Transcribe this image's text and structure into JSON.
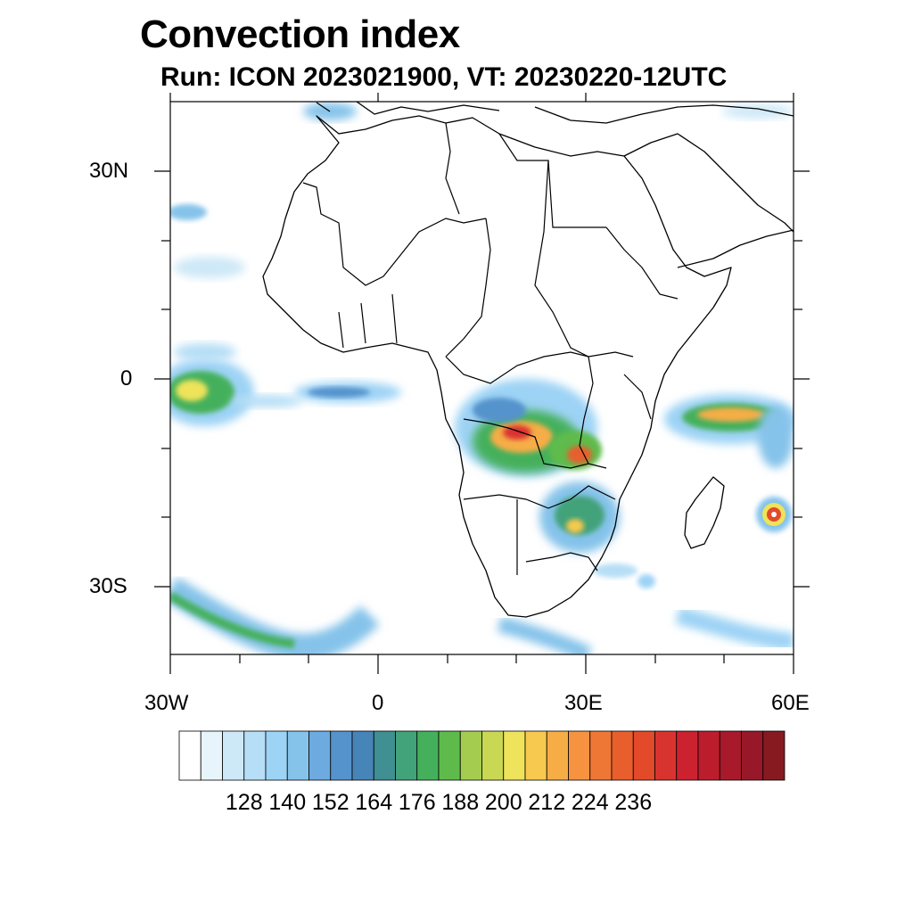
{
  "title": "Convection index",
  "subtitle": "Run: ICON 2023021900,  VT: 20230220-12UTC",
  "map": {
    "lon_range": [
      -30,
      60
    ],
    "lat_range": [
      -40,
      40
    ],
    "lat_ticks": [
      {
        "value": 30,
        "label": "30N"
      },
      {
        "value": 0,
        "label": "0"
      },
      {
        "value": -30,
        "label": "30S"
      }
    ],
    "lon_ticks": [
      {
        "value": -30,
        "label": "30W"
      },
      {
        "value": 0,
        "label": "0"
      },
      {
        "value": 30,
        "label": "30E"
      },
      {
        "value": 60,
        "label": "60E"
      }
    ]
  },
  "colorbar": {
    "colors": [
      "#ffffff",
      "#e8f4fb",
      "#cde8f7",
      "#b6def6",
      "#9dd3f5",
      "#85c3ea",
      "#6daadf",
      "#5593cc",
      "#4784b7",
      "#3f8f93",
      "#42a27a",
      "#45b05c",
      "#5ebb4b",
      "#a4cd4f",
      "#c9d852",
      "#eee35a",
      "#f7c94e",
      "#f6ad46",
      "#f69340",
      "#ee7736",
      "#e85f2d",
      "#e24a2a",
      "#d93330",
      "#cc2230",
      "#bb1d2d",
      "#a8192b",
      "#98182a",
      "#861a20"
    ],
    "labels": [
      "128",
      "140",
      "152",
      "164",
      "176",
      "188",
      "200",
      "212",
      "224",
      "236"
    ]
  },
  "features": {
    "convection_zones": [
      {
        "name": "central-africa",
        "lon": 22,
        "lat": -8,
        "level": 205
      },
      {
        "name": "zambia-congo",
        "lon": 30,
        "lat": -11,
        "level": 210
      },
      {
        "name": "mozambique-zimbabwe",
        "lon": 31,
        "lat": -20,
        "level": 185
      },
      {
        "name": "indian-ocean-band",
        "lon": 51,
        "lat": -5,
        "level": 195
      },
      {
        "name": "cyclone",
        "lon": 57,
        "lat": -19,
        "level": 215
      },
      {
        "name": "gulf-of-guinea-band",
        "lon": -4,
        "lat": -2,
        "level": 150
      },
      {
        "name": "atlantic-west",
        "lon": -27,
        "lat": -3,
        "level": 185
      },
      {
        "name": "south-atlantic-front",
        "lon": -20,
        "lat": -37,
        "level": 170
      }
    ]
  }
}
